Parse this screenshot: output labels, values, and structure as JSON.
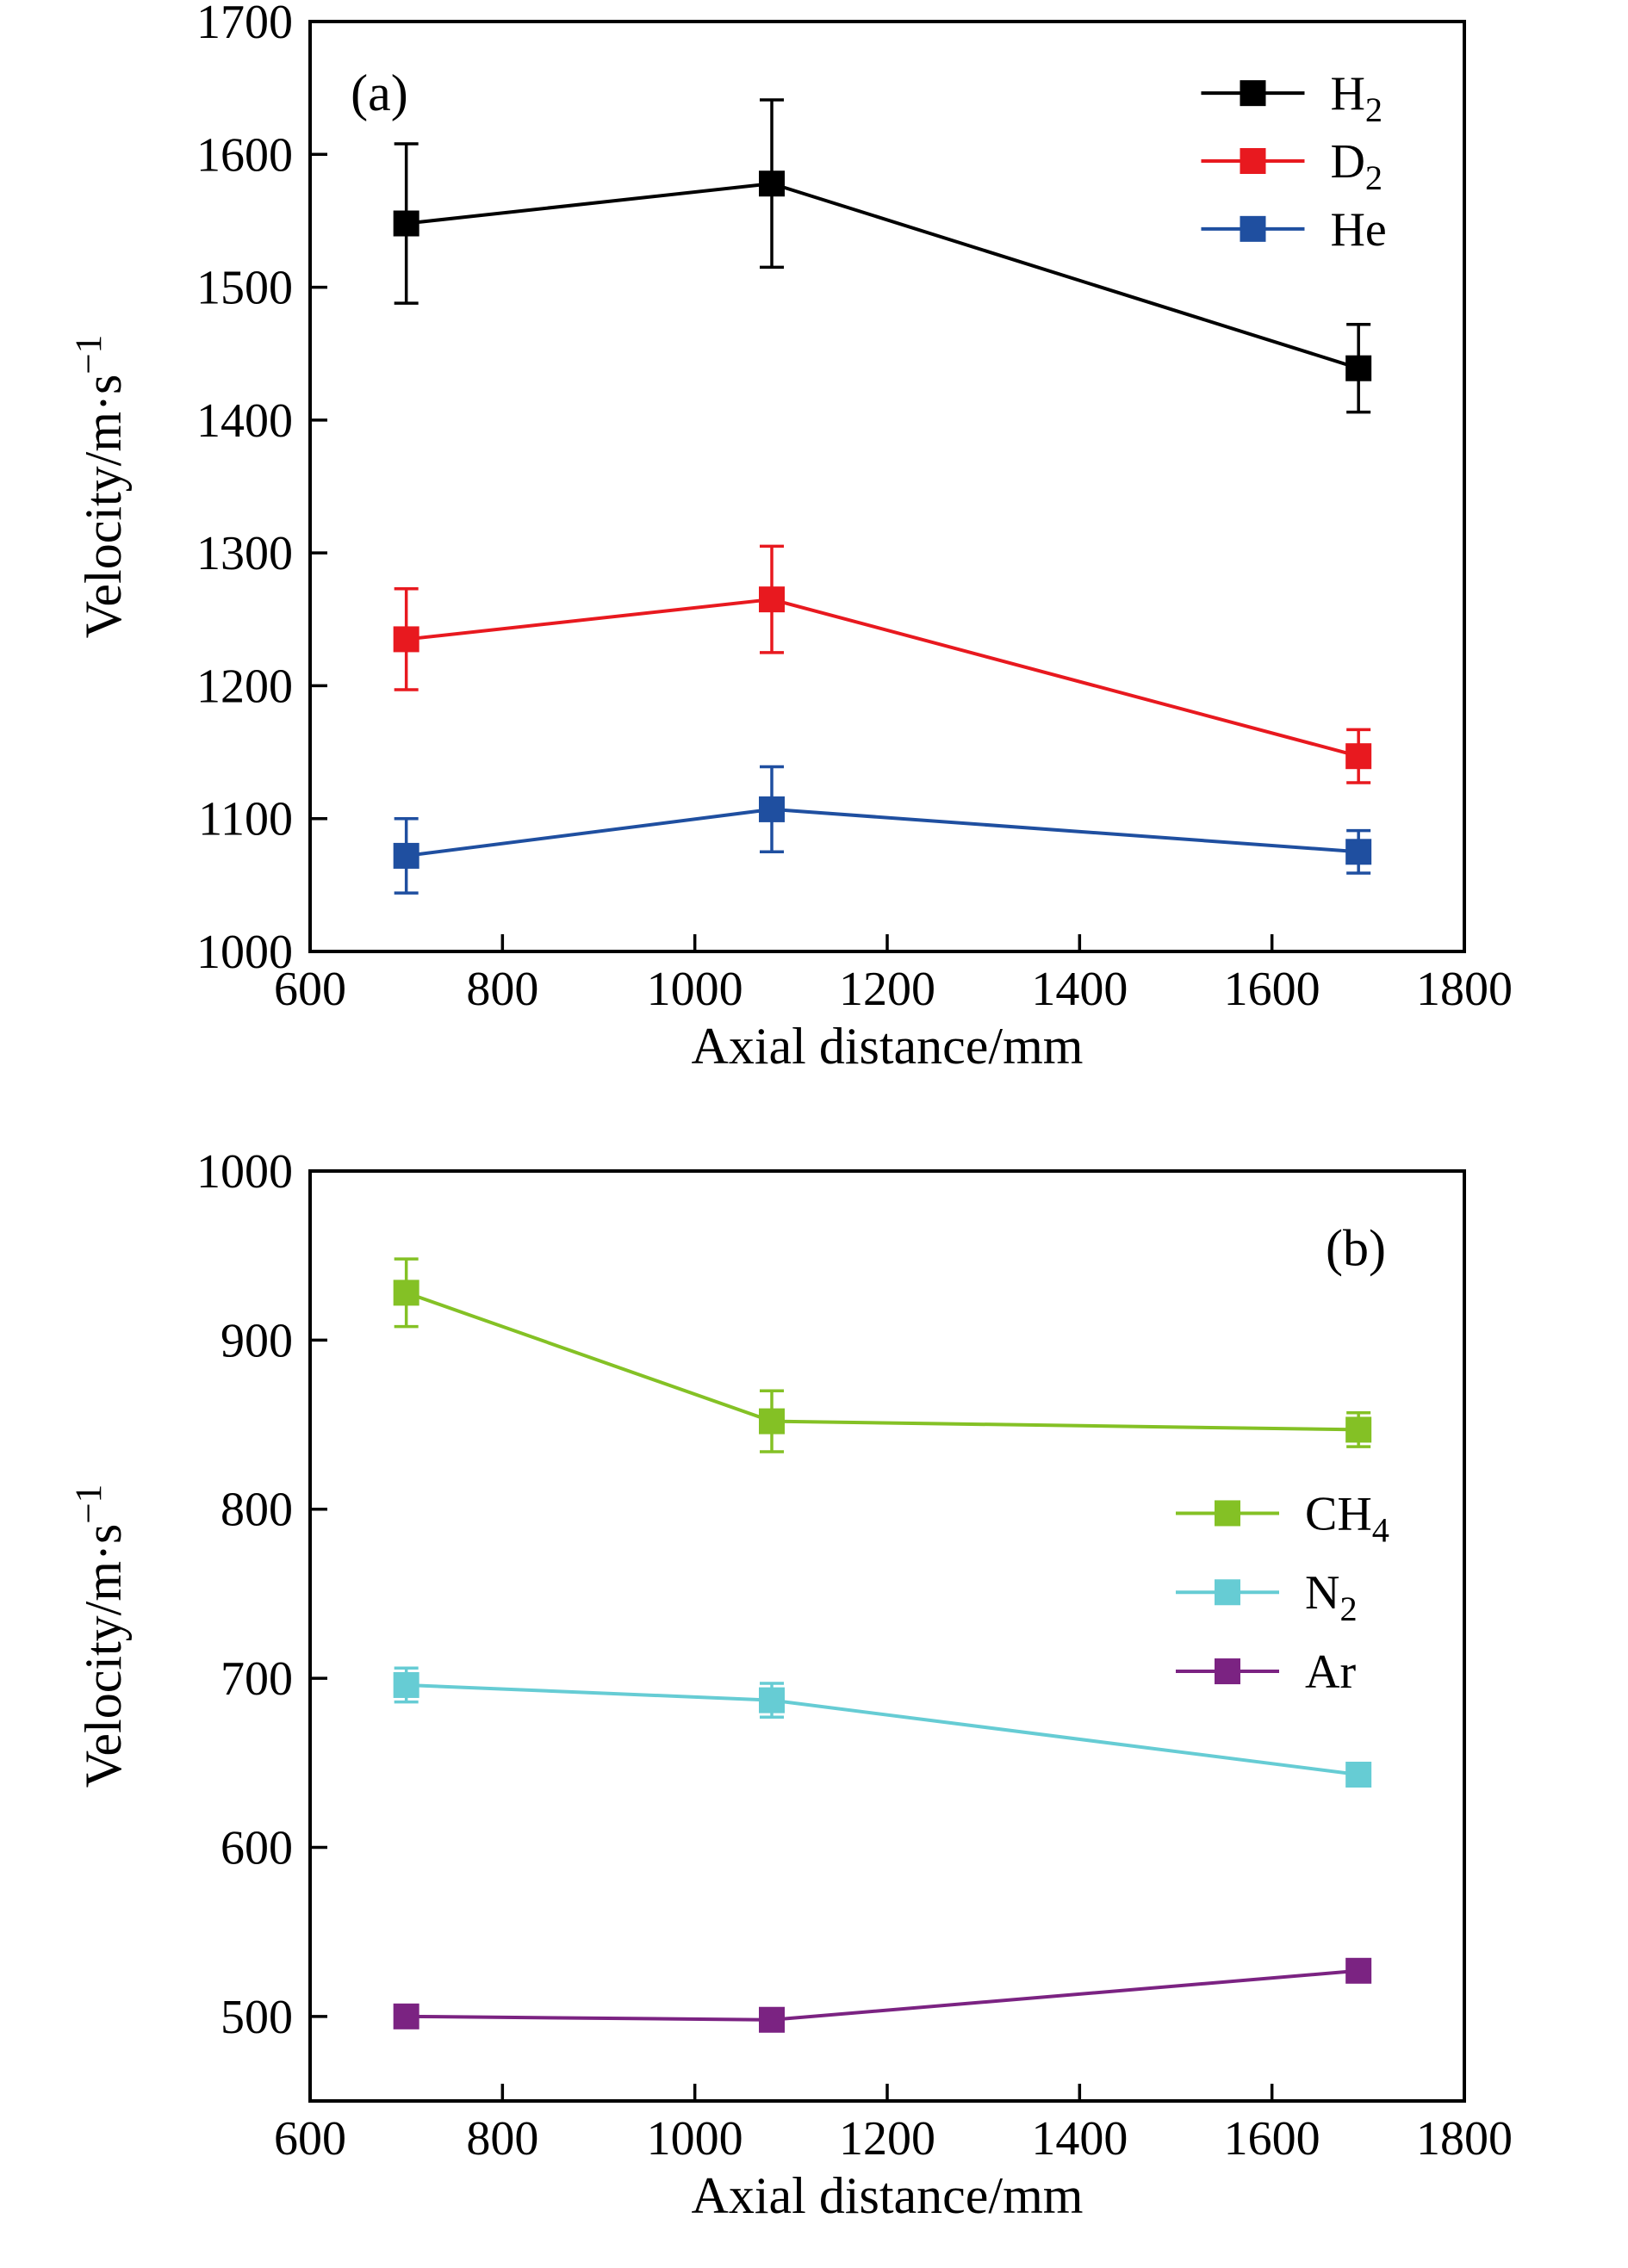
{
  "figure": {
    "background": "#ffffff",
    "panel_count": 2
  },
  "chart_data": [
    {
      "type": "line",
      "panel_label": "(a)",
      "xlabel": "Axial distance/mm",
      "ylabel": "Velocity/m·s⁻¹",
      "ylabel_parts": [
        {
          "t": "Velocity/m·s"
        },
        {
          "t": "−1",
          "sup": true
        }
      ],
      "xlim": [
        600,
        1800
      ],
      "ylim": [
        1000,
        1700
      ],
      "xticks": [
        600,
        800,
        1000,
        1200,
        1400,
        1600,
        1800
      ],
      "yticks": [
        1000,
        1100,
        1200,
        1300,
        1400,
        1500,
        1600,
        1700
      ],
      "grid": false,
      "x": [
        700,
        1080,
        1690
      ],
      "series": [
        {
          "name": "H2",
          "label": "H₂",
          "label_parts": [
            {
              "t": "H"
            },
            {
              "t": "2",
              "sub": true
            }
          ],
          "color": "#000000",
          "values": [
            1548,
            1578,
            1439
          ],
          "errors": [
            60,
            63,
            33
          ]
        },
        {
          "name": "D2",
          "label": "D₂",
          "label_parts": [
            {
              "t": "D"
            },
            {
              "t": "2",
              "sub": true
            }
          ],
          "color": "#e8191f",
          "values": [
            1235,
            1265,
            1147
          ],
          "errors": [
            38,
            40,
            20
          ]
        },
        {
          "name": "He",
          "label": "He",
          "label_parts": [
            {
              "t": "He"
            }
          ],
          "color": "#1f4fa0",
          "values": [
            1072,
            1107,
            1075
          ],
          "errors": [
            28,
            32,
            16
          ]
        }
      ],
      "legend_pos": {
        "x": 0.772,
        "y": 0.077,
        "row": 0.073
      },
      "panel_label_pos": {
        "x": 0.06,
        "y": 0.077
      }
    },
    {
      "type": "line",
      "panel_label": "(b)",
      "xlabel": "Axial distance/mm",
      "ylabel": "Velocity/m·s⁻¹",
      "ylabel_parts": [
        {
          "t": "Velocity/m·s"
        },
        {
          "t": "−1",
          "sup": true
        }
      ],
      "xlim": [
        600,
        1800
      ],
      "ylim": [
        450,
        1000
      ],
      "xticks": [
        600,
        800,
        1000,
        1200,
        1400,
        1600,
        1800
      ],
      "yticks": [
        500,
        600,
        700,
        800,
        900,
        1000
      ],
      "grid": false,
      "x": [
        700,
        1080,
        1690
      ],
      "series": [
        {
          "name": "CH4",
          "label": "CH₄",
          "label_parts": [
            {
              "t": "CH"
            },
            {
              "t": "4",
              "sub": true
            }
          ],
          "color": "#84c125",
          "values": [
            928,
            852,
            847
          ],
          "errors": [
            20,
            18,
            10
          ]
        },
        {
          "name": "N2",
          "label": "N₂",
          "label_parts": [
            {
              "t": "N"
            },
            {
              "t": "2",
              "sub": true
            }
          ],
          "color": "#66ccd4",
          "values": [
            696,
            687,
            643
          ],
          "errors": [
            10,
            10,
            6
          ]
        },
        {
          "name": "Ar",
          "label": "Ar",
          "label_parts": [
            {
              "t": "Ar"
            }
          ],
          "color": "#7b2382",
          "values": [
            500,
            498,
            527
          ],
          "errors": [
            4,
            4,
            4
          ]
        }
      ],
      "legend_pos": {
        "x": 0.75,
        "y": 0.368,
        "row": 0.085
      },
      "panel_label_pos": {
        "x": 0.906,
        "y": 0.083
      }
    }
  ]
}
